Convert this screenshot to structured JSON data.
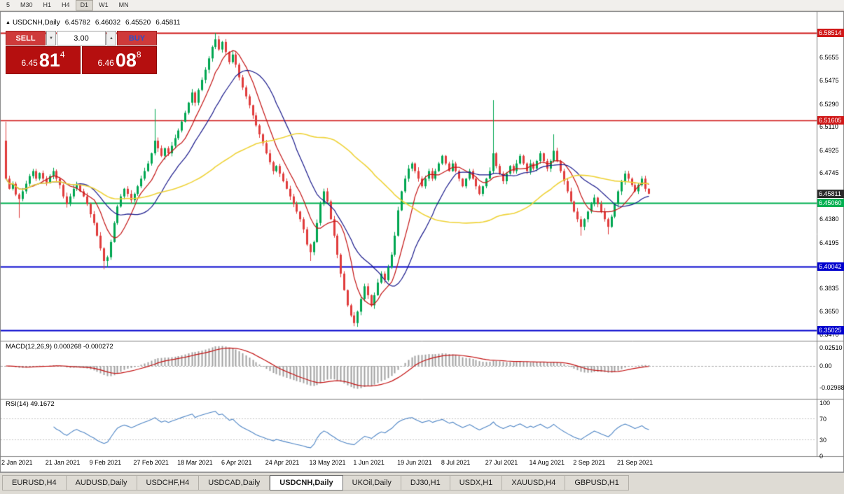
{
  "toolbar": {
    "periods": [
      "5",
      "M30",
      "H1",
      "H4",
      "D1",
      "W1",
      "MN"
    ],
    "active_index": 4
  },
  "chart": {
    "symbol_header": "USDCNH,Daily",
    "quote": {
      "open": "6.45782",
      "high": "6.46032",
      "low": "6.45520",
      "close": "6.45811"
    }
  },
  "trade_panel": {
    "sell_label": "SELL",
    "buy_label": "BUY",
    "volume": "3.00",
    "sell_price": {
      "big": "6.45",
      "large": "81",
      "sup": "4"
    },
    "buy_price": {
      "big": "6.46",
      "large": "08",
      "sup": "8"
    }
  },
  "indicators": {
    "macd_label": "MACD(12,26,9) 0.000268 -0.000272",
    "rsi_label": "RSI(14) 49.1672"
  },
  "tabs": {
    "items": [
      "EURUSD,H4",
      "AUDUSD,Daily",
      "USDCHF,H4",
      "USDCAD,Daily",
      "USDCNH,Daily",
      "UKOil,Daily",
      "DJ30,H1",
      "USDX,H1",
      "XAUUSD,H4",
      "GBPUSD,H1"
    ],
    "active_index": 4
  },
  "chart_data": {
    "type": "candlestick",
    "symbol": "USDCNH",
    "timeframe": "Daily",
    "title": "USDCNH,Daily 6.45782 6.46032 6.45520 6.45811",
    "price_range": {
      "top": 6.5851,
      "bottom": 6.347
    },
    "closes": [
      6.47,
      6.462,
      6.466,
      6.4575,
      6.454,
      6.46,
      6.466,
      6.472,
      6.476,
      6.47,
      6.4745,
      6.47,
      6.467,
      6.472,
      6.476,
      6.47,
      6.465,
      6.456,
      6.45,
      6.456,
      6.462,
      6.465,
      6.46,
      6.456,
      6.45,
      6.442,
      6.435,
      6.425,
      6.415,
      6.405,
      6.408,
      6.42,
      6.435,
      6.448,
      6.456,
      6.462,
      6.458,
      6.453,
      6.458,
      6.464,
      6.47,
      6.476,
      6.482,
      6.49,
      6.5,
      6.494,
      6.488,
      6.494,
      6.49,
      6.496,
      6.502,
      6.508,
      6.515,
      6.522,
      6.53,
      6.538,
      6.53,
      6.54,
      6.548,
      6.556,
      6.565,
      6.574,
      6.58,
      6.572,
      6.578,
      6.57,
      6.562,
      6.568,
      6.56,
      6.55,
      6.542,
      6.535,
      6.528,
      6.52,
      6.512,
      6.505,
      6.498,
      6.49,
      6.483,
      6.476,
      6.48,
      6.474,
      6.468,
      6.462,
      6.456,
      6.45,
      6.444,
      6.438,
      6.43,
      6.418,
      6.412,
      6.42,
      6.435,
      6.45,
      6.46,
      6.452,
      6.438,
      6.425,
      6.41,
      6.395,
      6.382,
      6.37,
      6.362,
      6.356,
      6.365,
      6.375,
      6.385,
      6.378,
      6.37,
      6.378,
      6.388,
      6.395,
      6.39,
      6.4,
      6.41,
      6.425,
      6.445,
      6.46,
      6.47,
      6.478,
      6.482,
      6.476,
      6.47,
      6.464,
      6.47,
      6.476,
      6.47,
      6.476,
      6.482,
      6.488,
      6.482,
      6.476,
      6.482,
      6.476,
      6.47,
      6.464,
      6.47,
      6.476,
      6.47,
      6.464,
      6.458,
      6.464,
      6.47,
      6.476,
      6.49,
      6.48,
      6.474,
      6.468,
      6.474,
      6.48,
      6.476,
      6.482,
      6.488,
      6.482,
      6.476,
      6.482,
      6.478,
      6.484,
      6.49,
      6.484,
      6.478,
      6.484,
      6.492,
      6.484,
      6.476,
      6.468,
      6.46,
      6.452,
      6.444,
      6.438,
      6.432,
      6.438,
      6.444,
      6.45,
      6.455,
      6.45,
      6.444,
      6.438,
      6.432,
      6.44,
      6.45,
      6.46,
      6.468,
      6.474,
      6.47,
      6.465,
      6.46,
      6.465,
      6.47,
      6.462,
      6.45811
    ],
    "wick_overrides": {
      "0": {
        "o": 6.5,
        "h": 6.515
      },
      "4": {
        "l": 6.439
      },
      "29": {
        "l": 6.3985
      },
      "30": {
        "l": 6.4
      },
      "44": {
        "h": 6.525
      },
      "62": {
        "h": 6.5851
      },
      "90": {
        "l": 6.405
      },
      "103": {
        "l": 6.3535
      },
      "144": {
        "h": 6.532
      },
      "162": {
        "h": 6.505
      },
      "170": {
        "l": 6.425
      },
      "178": {
        "l": 6.426
      }
    },
    "moving_averages": [
      {
        "period": 8,
        "color": "#c41414",
        "width": 1.2
      },
      {
        "period": 18,
        "color": "#1a1a8c",
        "width": 1.2
      },
      {
        "period": 55,
        "color": "#efd338",
        "width": 1.6
      }
    ],
    "levels": [
      {
        "price": 6.58514,
        "label": "6.58514",
        "color": "#d01818",
        "width": 2
      },
      {
        "price": 6.51605,
        "label": "6.51605",
        "color": "#d01818",
        "width": 1.4
      },
      {
        "price": 6.4506,
        "label": "6.45060",
        "color": "#00b050",
        "width": 2
      },
      {
        "price": 6.40042,
        "label": "6.40042",
        "color": "#0000cd",
        "width": 2
      },
      {
        "price": 6.35025,
        "label": "6.35025",
        "color": "#0000cd",
        "width": 2
      }
    ],
    "current_price": {
      "value": 6.45811,
      "label": "6.45811",
      "color": "#2b2b2b"
    },
    "price_ticks": [
      {
        "v": 6.5655,
        "label": "6.5655"
      },
      {
        "v": 6.5475,
        "label": "6.5475"
      },
      {
        "v": 6.529,
        "label": "6.5290"
      },
      {
        "v": 6.511,
        "label": "6.5110"
      },
      {
        "v": 6.4925,
        "label": "6.4925"
      },
      {
        "v": 6.4745,
        "label": "6.4745"
      },
      {
        "v": 6.438,
        "label": "6.4380"
      },
      {
        "v": 6.4195,
        "label": "6.4195"
      },
      {
        "v": 6.3835,
        "label": "6.3835"
      },
      {
        "v": 6.365,
        "label": "6.3650"
      },
      {
        "v": 6.347,
        "label": "6.3470"
      }
    ],
    "x_labels": [
      "2 Jan 2021",
      "21 Jan 2021",
      "9 Feb 2021",
      "27 Feb 2021",
      "18 Mar 2021",
      "6 Apr 2021",
      "24 Apr 2021",
      "13 May 2021",
      "1 Jun 2021",
      "19 Jun 2021",
      "8 Jul 2021",
      "27 Jul 2021",
      "14 Aug 2021",
      "2 Sep 2021",
      "21 Sep 2021"
    ],
    "bars_per_x_label": 13,
    "macd": {
      "params": "12,26,9",
      "main_value": 0.000268,
      "signal_value": -0.000272,
      "histogram_color": "#a0a0a0",
      "signal_color": "#c41414",
      "ticks": [
        {
          "v": 0.0251,
          "label": "0.02510"
        },
        {
          "v": 0.0,
          "label": "0.00"
        },
        {
          "v": -0.02988,
          "label": "-0.02988"
        }
      ]
    },
    "rsi": {
      "period": 14,
      "value": 49.1672,
      "line_color": "#4f86c6",
      "levels": [
        70,
        30
      ],
      "ticks": [
        {
          "v": 100,
          "label": "100"
        },
        {
          "v": 70,
          "label": "70"
        },
        {
          "v": 30,
          "label": "30"
        },
        {
          "v": 0,
          "label": "0"
        }
      ]
    },
    "colors": {
      "up": "#00a651",
      "down": "#e03c3c"
    }
  }
}
